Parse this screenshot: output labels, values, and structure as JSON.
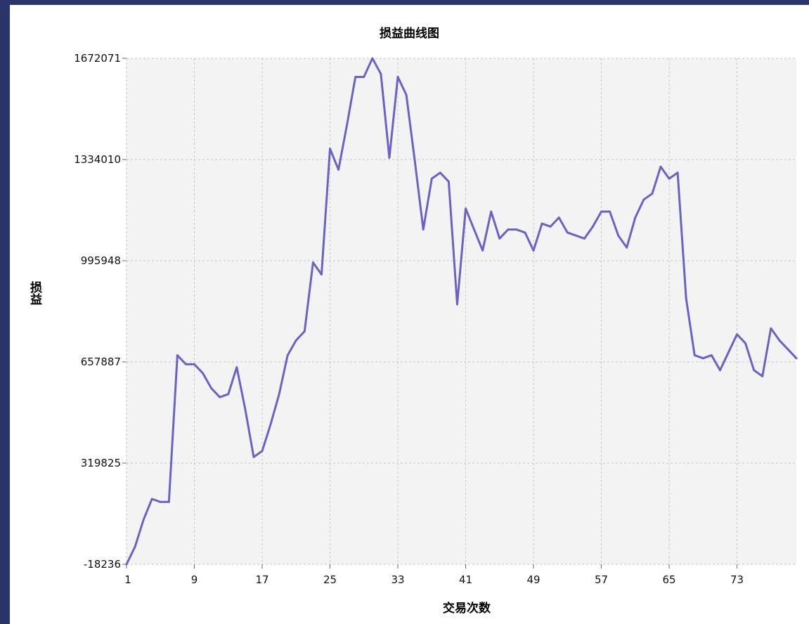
{
  "chart_data": {
    "type": "line",
    "title": "损益曲线图",
    "xlabel": "交易次数",
    "ylabel": "损益",
    "xlim": [
      1,
      80
    ],
    "ylim": [
      -18236,
      1672071
    ],
    "x_ticks": [
      1,
      9,
      17,
      25,
      33,
      41,
      49,
      57,
      65,
      73
    ],
    "y_ticks": [
      -18236,
      319825,
      657887,
      995948,
      1334010,
      1672071
    ],
    "grid": true,
    "colors": {
      "line": "#6b63c4",
      "plot_bg": "#f3f3f3",
      "grid": "#c6c6c6",
      "frame": "#2a356b"
    },
    "series": [
      {
        "x": [
          1,
          2,
          3,
          4,
          5,
          6,
          7,
          8,
          9,
          10,
          11,
          12,
          13,
          14,
          15,
          16,
          17,
          18,
          19,
          20,
          21,
          22,
          23,
          24,
          25,
          26,
          27,
          28,
          29,
          30,
          31,
          32,
          33,
          34,
          35,
          36,
          37,
          38,
          39,
          40,
          41,
          42,
          43,
          44,
          45,
          46,
          47,
          48,
          49,
          50,
          51,
          52,
          53,
          54,
          55,
          56,
          57,
          58,
          59,
          60,
          61,
          62,
          63,
          64,
          65,
          66,
          67,
          68,
          69,
          70,
          71,
          72,
          73,
          74,
          75,
          76,
          77,
          78,
          79,
          80
        ],
        "values": [
          -18236,
          40000,
          130000,
          200000,
          190000,
          190000,
          680000,
          650000,
          650000,
          620000,
          570000,
          540000,
          550000,
          640000,
          500000,
          340000,
          360000,
          450000,
          550000,
          680000,
          730000,
          760000,
          990000,
          950000,
          1370000,
          1300000,
          1450000,
          1610000,
          1610000,
          1672071,
          1620000,
          1340000,
          1610000,
          1550000,
          1330000,
          1100000,
          1270000,
          1290000,
          1260000,
          850000,
          1170000,
          1100000,
          1030000,
          1160000,
          1070000,
          1100000,
          1100000,
          1090000,
          1030000,
          1120000,
          1110000,
          1140000,
          1090000,
          1080000,
          1070000,
          1110000,
          1160000,
          1160000,
          1080000,
          1040000,
          1140000,
          1200000,
          1220000,
          1310000,
          1270000,
          1290000,
          870000,
          680000,
          670000,
          680000,
          630000,
          690000,
          750000,
          720000,
          630000,
          610000,
          770000,
          730000,
          700000,
          670000
        ]
      }
    ]
  }
}
